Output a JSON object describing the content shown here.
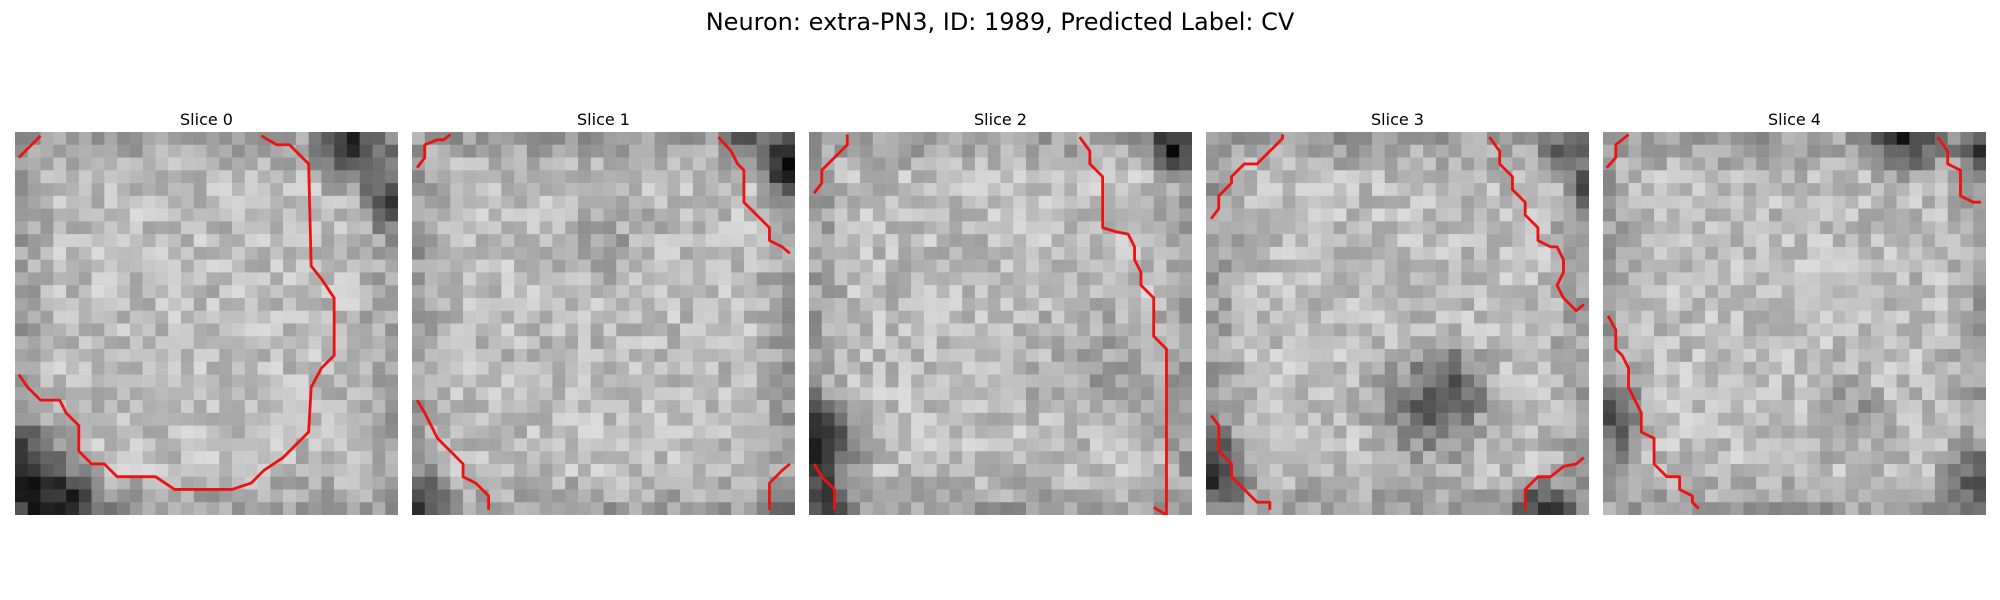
{
  "figure": {
    "title": "Neuron: extra-PN3, ID: 1989, Predicted Label: CV"
  },
  "slices": [
    {
      "label": "Slice 0"
    },
    {
      "label": "Slice 1"
    },
    {
      "label": "Slice 2"
    },
    {
      "label": "Slice 3"
    },
    {
      "label": "Slice 4"
    }
  ],
  "colors": {
    "contour": "#ee1111",
    "background": "#ffffff"
  }
}
